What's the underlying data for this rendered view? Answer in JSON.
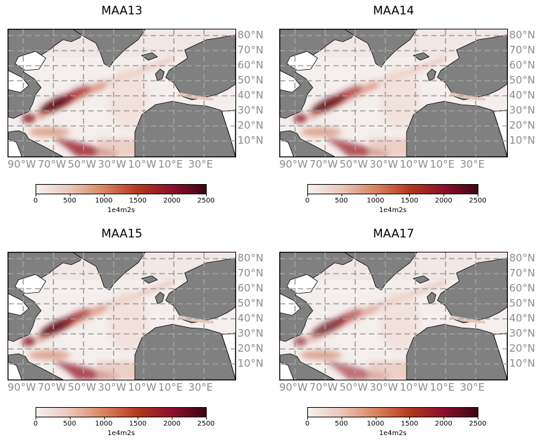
{
  "panels": [
    {
      "title": "MAA13"
    },
    {
      "title": "MAA14"
    },
    {
      "title": "MAA15"
    },
    {
      "title": "MAA17"
    }
  ],
  "lat_labels": [
    "80°N",
    "70°N",
    "60°N",
    "50°N",
    "40°N",
    "30°N",
    "20°N",
    "10°N"
  ],
  "lon_labels": [
    "90°W",
    "70°W",
    "50°W",
    "30°W",
    "10°W",
    "10°E",
    "30°E"
  ],
  "colorbar": {
    "ticks": [
      "0",
      "500",
      "1000",
      "1500",
      "2000",
      "2500"
    ],
    "label": "1e4m2s",
    "min": 0,
    "max": 2500,
    "colors": [
      "#f5f0ef",
      "#ecc5b8",
      "#d9825f",
      "#b5371c",
      "#8b0f2a",
      "#3b0711"
    ]
  },
  "colors": {
    "land": "#808080",
    "grid": "#a0a0a0",
    "label": "#8c8c8c"
  }
}
